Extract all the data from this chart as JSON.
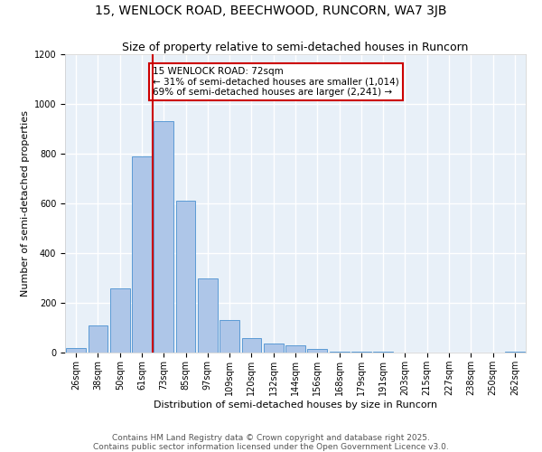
{
  "title": "15, WENLOCK ROAD, BEECHWOOD, RUNCORN, WA7 3JB",
  "subtitle": "Size of property relative to semi-detached houses in Runcorn",
  "xlabel": "Distribution of semi-detached houses by size in Runcorn",
  "ylabel": "Number of semi-detached properties",
  "bar_color": "#aec6e8",
  "bar_edge_color": "#5b9bd5",
  "background_color": "#e8f0f8",
  "grid_color": "#ffffff",
  "categories": [
    "26sqm",
    "38sqm",
    "50sqm",
    "61sqm",
    "73sqm",
    "85sqm",
    "97sqm",
    "109sqm",
    "120sqm",
    "132sqm",
    "144sqm",
    "156sqm",
    "168sqm",
    "179sqm",
    "191sqm",
    "203sqm",
    "215sqm",
    "227sqm",
    "238sqm",
    "250sqm",
    "262sqm"
  ],
  "values": [
    20,
    110,
    260,
    790,
    930,
    610,
    300,
    130,
    60,
    35,
    30,
    15,
    5,
    3,
    2,
    1,
    1,
    1,
    0,
    0,
    5
  ],
  "property_label": "15 WENLOCK ROAD: 72sqm",
  "annotation_line1": "← 31% of semi-detached houses are smaller (1,014)",
  "annotation_line2": "69% of semi-detached houses are larger (2,241) →",
  "ylim": [
    0,
    1200
  ],
  "yticks": [
    0,
    200,
    400,
    600,
    800,
    1000,
    1200
  ],
  "footer_line1": "Contains HM Land Registry data © Crown copyright and database right 2025.",
  "footer_line2": "Contains public sector information licensed under the Open Government Licence v3.0.",
  "annotation_box_color": "#cc0000",
  "property_line_color": "#cc0000",
  "title_fontsize": 10,
  "subtitle_fontsize": 9,
  "axis_label_fontsize": 8,
  "tick_fontsize": 7,
  "annotation_fontsize": 7.5,
  "footer_fontsize": 6.5
}
